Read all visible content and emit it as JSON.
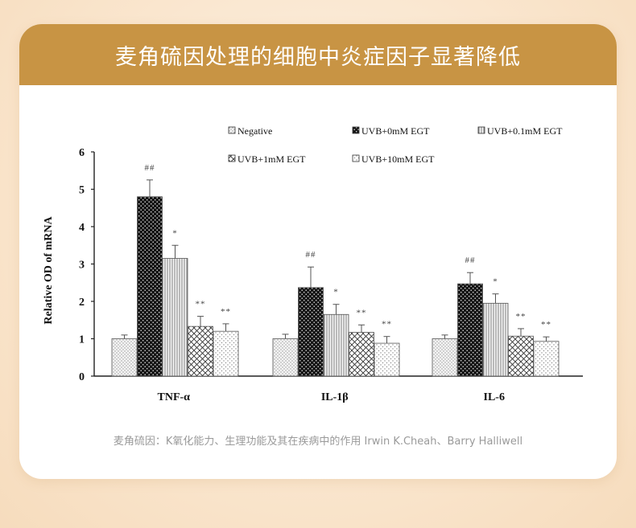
{
  "header": {
    "title": "麦角硫因处理的细胞中炎症因子显著降低"
  },
  "source": "麦角硫因：K氧化能力、生理功能及其在疾病中的作用 Irwin K.Cheah、Barry Halliwell",
  "chart_data": {
    "type": "bar",
    "ylabel": "Relative OD of mRNA",
    "xlabel": "",
    "ylim": [
      0,
      6
    ],
    "yticks": [
      "0",
      "1",
      "2",
      "3",
      "4",
      "5",
      "6"
    ],
    "categories": [
      "TNF-α",
      "IL-1β",
      "IL-6"
    ],
    "series": [
      {
        "name": "Negative",
        "pattern": "dots-light",
        "values": [
          1.0,
          1.0,
          1.0
        ],
        "errors": [
          0.1,
          0.12,
          0.1
        ],
        "annotations": [
          "",
          "",
          ""
        ]
      },
      {
        "name": "UVB+0mM EGT",
        "pattern": "black-dots",
        "values": [
          4.8,
          2.37,
          2.47
        ],
        "errors": [
          0.45,
          0.55,
          0.3
        ],
        "annotations": [
          "##",
          "##",
          "##"
        ]
      },
      {
        "name": "UVB+0.1mM EGT",
        "pattern": "vertical-lines",
        "values": [
          3.15,
          1.65,
          1.95
        ],
        "errors": [
          0.35,
          0.27,
          0.25
        ],
        "annotations": [
          "*",
          "*",
          "*"
        ]
      },
      {
        "name": "UVB+1mM EGT",
        "pattern": "crosshatch",
        "values": [
          1.33,
          1.17,
          1.07
        ],
        "errors": [
          0.27,
          0.2,
          0.2
        ],
        "annotations": [
          "**",
          "**",
          "**"
        ]
      },
      {
        "name": "UVB+10mM EGT",
        "pattern": "dots-sparse",
        "values": [
          1.2,
          0.88,
          0.93
        ],
        "errors": [
          0.2,
          0.18,
          0.12
        ],
        "annotations": [
          "**",
          "**",
          "**"
        ]
      }
    ],
    "legend": "top-right",
    "grid": false
  }
}
